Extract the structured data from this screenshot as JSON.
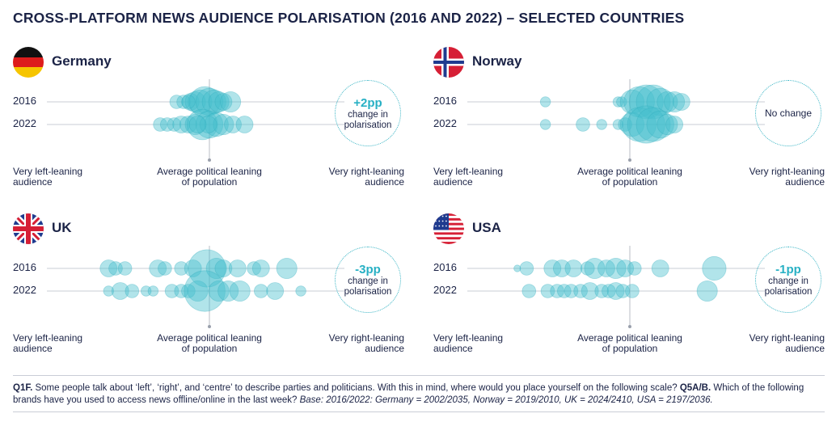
{
  "title": "CROSS-PLATFORM NEWS AUDIENCE POLARISATION (2016 AND 2022) – SELECTED COUNTRIES",
  "colors": {
    "bubble": "#46bfcc",
    "bubble_stroke": "#2aa9ba",
    "accent": "#27b0c4",
    "text": "#1b2346",
    "gridline": "#c9cdd6"
  },
  "labels": {
    "left": "Very left-leaning audience",
    "left_l1": "Very left-leaning",
    "left_l2": "audience",
    "mid_l1": "Average political leaning",
    "mid_l2": "of population",
    "right_l1": "Very right-leaning",
    "right_l2": "audience"
  },
  "change_text_l1": "change in",
  "change_text_l2": "polarisation",
  "chart_data": [
    {
      "type": "scatter",
      "country": "Germany",
      "flag": "germany-flag",
      "years": [
        "2016",
        "2022"
      ],
      "change": "+2pp",
      "xlim": [
        -1,
        1
      ],
      "series": [
        {
          "name": "2016",
          "points": [
            {
              "x": -0.28,
              "size": 4
            },
            {
              "x": -0.22,
              "size": 4
            },
            {
              "x": -0.16,
              "size": 5
            },
            {
              "x": -0.12,
              "size": 6
            },
            {
              "x": -0.08,
              "size": 7
            },
            {
              "x": -0.04,
              "size": 9
            },
            {
              "x": 0.0,
              "size": 8
            },
            {
              "x": 0.04,
              "size": 7
            },
            {
              "x": 0.08,
              "size": 6
            },
            {
              "x": 0.12,
              "size": 5
            },
            {
              "x": 0.18,
              "size": 6
            },
            {
              "x": -0.18,
              "size": 4
            }
          ]
        },
        {
          "name": "2022",
          "points": [
            {
              "x": -0.42,
              "size": 4
            },
            {
              "x": -0.36,
              "size": 4
            },
            {
              "x": -0.3,
              "size": 4
            },
            {
              "x": -0.24,
              "size": 5
            },
            {
              "x": -0.18,
              "size": 5
            },
            {
              "x": -0.12,
              "size": 6
            },
            {
              "x": -0.06,
              "size": 9
            },
            {
              "x": 0.0,
              "size": 8
            },
            {
              "x": 0.06,
              "size": 7
            },
            {
              "x": 0.12,
              "size": 6
            },
            {
              "x": 0.2,
              "size": 5
            },
            {
              "x": 0.3,
              "size": 5
            },
            {
              "x": -0.01,
              "size": 5
            },
            {
              "x": -0.1,
              "size": 5
            }
          ]
        }
      ]
    },
    {
      "type": "scatter",
      "country": "Norway",
      "flag": "norway-flag",
      "years": [
        "2016",
        "2022"
      ],
      "change": "No change",
      "xlim": [
        -1,
        1
      ],
      "series": [
        {
          "name": "2016",
          "points": [
            {
              "x": -0.72,
              "size": 3
            },
            {
              "x": -0.1,
              "size": 3
            },
            {
              "x": -0.07,
              "size": 3
            },
            {
              "x": 0.02,
              "size": 7
            },
            {
              "x": 0.08,
              "size": 9
            },
            {
              "x": 0.14,
              "size": 10
            },
            {
              "x": 0.2,
              "size": 10
            },
            {
              "x": 0.26,
              "size": 8
            },
            {
              "x": 0.32,
              "size": 6
            },
            {
              "x": 0.38,
              "size": 6
            },
            {
              "x": 0.44,
              "size": 5
            }
          ]
        },
        {
          "name": "2022",
          "points": [
            {
              "x": -0.72,
              "size": 3
            },
            {
              "x": -0.4,
              "size": 4
            },
            {
              "x": -0.24,
              "size": 3
            },
            {
              "x": -0.1,
              "size": 3
            },
            {
              "x": -0.04,
              "size": 4
            },
            {
              "x": 0.02,
              "size": 7
            },
            {
              "x": 0.08,
              "size": 10
            },
            {
              "x": 0.14,
              "size": 11
            },
            {
              "x": 0.2,
              "size": 10
            },
            {
              "x": 0.26,
              "size": 8
            },
            {
              "x": 0.32,
              "size": 6
            },
            {
              "x": 0.38,
              "size": 5
            }
          ]
        }
      ]
    },
    {
      "type": "scatter",
      "country": "UK",
      "flag": "uk-flag",
      "years": [
        "2016",
        "2022"
      ],
      "change": "-3pp",
      "xlim": [
        -1,
        1
      ],
      "series": [
        {
          "name": "2016",
          "points": [
            {
              "x": -0.86,
              "size": 5
            },
            {
              "x": -0.8,
              "size": 4
            },
            {
              "x": -0.72,
              "size": 4
            },
            {
              "x": -0.44,
              "size": 5
            },
            {
              "x": -0.38,
              "size": 4
            },
            {
              "x": -0.24,
              "size": 4
            },
            {
              "x": -0.14,
              "size": 5
            },
            {
              "x": -0.02,
              "size": 11
            },
            {
              "x": 0.06,
              "size": 6
            },
            {
              "x": 0.12,
              "size": 5
            },
            {
              "x": 0.24,
              "size": 5
            },
            {
              "x": 0.38,
              "size": 4
            },
            {
              "x": 0.44,
              "size": 5
            },
            {
              "x": 0.66,
              "size": 6
            }
          ]
        },
        {
          "name": "2022",
          "points": [
            {
              "x": -0.86,
              "size": 3
            },
            {
              "x": -0.76,
              "size": 5
            },
            {
              "x": -0.66,
              "size": 4
            },
            {
              "x": -0.54,
              "size": 3
            },
            {
              "x": -0.48,
              "size": 3
            },
            {
              "x": -0.32,
              "size": 4
            },
            {
              "x": -0.24,
              "size": 4
            },
            {
              "x": -0.18,
              "size": 4
            },
            {
              "x": -0.1,
              "size": 6
            },
            {
              "x": -0.04,
              "size": 12
            },
            {
              "x": 0.08,
              "size": 6
            },
            {
              "x": 0.16,
              "size": 6
            },
            {
              "x": 0.26,
              "size": 6
            },
            {
              "x": 0.44,
              "size": 4
            },
            {
              "x": 0.56,
              "size": 5
            },
            {
              "x": 0.78,
              "size": 3
            }
          ]
        }
      ]
    },
    {
      "type": "scatter",
      "country": "USA",
      "flag": "usa-flag",
      "years": [
        "2016",
        "2022"
      ],
      "change": "-1pp",
      "xlim": [
        -1,
        1
      ],
      "series": [
        {
          "name": "2016",
          "points": [
            {
              "x": -0.96,
              "size": 2
            },
            {
              "x": -0.88,
              "size": 4
            },
            {
              "x": -0.66,
              "size": 5
            },
            {
              "x": -0.58,
              "size": 5
            },
            {
              "x": -0.48,
              "size": 5
            },
            {
              "x": -0.36,
              "size": 4
            },
            {
              "x": -0.3,
              "size": 6
            },
            {
              "x": -0.2,
              "size": 5
            },
            {
              "x": -0.12,
              "size": 6
            },
            {
              "x": -0.04,
              "size": 5
            },
            {
              "x": 0.04,
              "size": 4
            },
            {
              "x": 0.26,
              "size": 5
            },
            {
              "x": 0.72,
              "size": 7
            }
          ]
        },
        {
          "name": "2022",
          "points": [
            {
              "x": -0.86,
              "size": 4
            },
            {
              "x": -0.7,
              "size": 4
            },
            {
              "x": -0.62,
              "size": 4
            },
            {
              "x": -0.56,
              "size": 4
            },
            {
              "x": -0.5,
              "size": 4
            },
            {
              "x": -0.42,
              "size": 4
            },
            {
              "x": -0.34,
              "size": 5
            },
            {
              "x": -0.24,
              "size": 4
            },
            {
              "x": -0.18,
              "size": 4
            },
            {
              "x": -0.12,
              "size": 5
            },
            {
              "x": -0.06,
              "size": 4
            },
            {
              "x": 0.02,
              "size": 4
            },
            {
              "x": 0.66,
              "size": 6
            }
          ]
        }
      ]
    }
  ],
  "footer": {
    "q1f_label": "Q1F.",
    "q1f_text": " Some people talk about ‘left’, ‘right’, and ‘centre’ to describe parties and politicians. With this in mind, where would you place yourself on the following scale? ",
    "q5_label": "Q5A/B.",
    "q5_text": " Which of the following brands have you used to access news offline/online in the last week? ",
    "base_label": "Base",
    "base_text": ": 2016/2022: Germany = 2002/2035, Norway = 2019/2010, UK = 2024/2410, USA = 2197/2036."
  }
}
